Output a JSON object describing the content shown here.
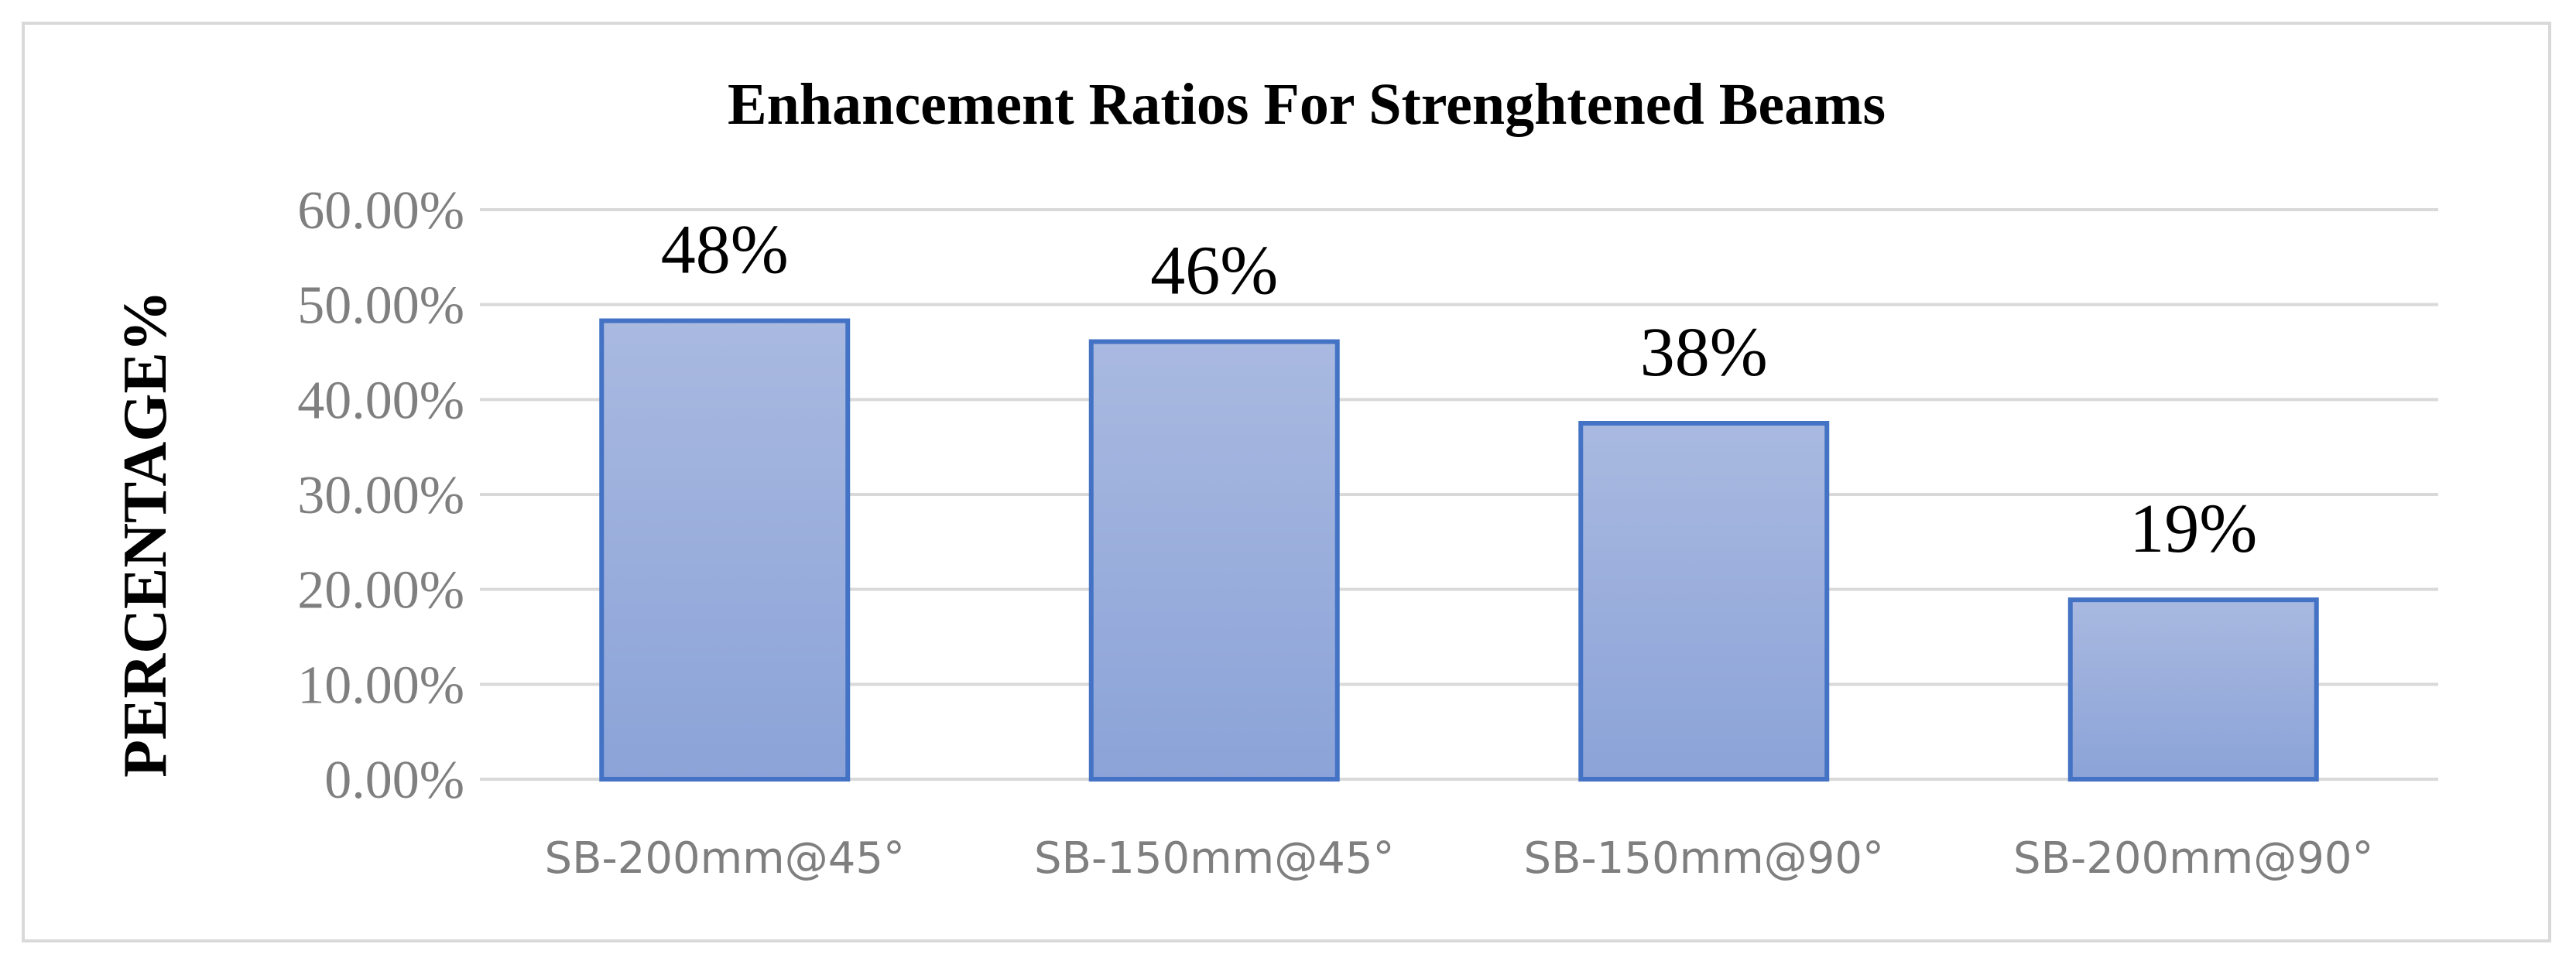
{
  "chart_data": {
    "type": "bar",
    "title": "Enhancement Ratios For Strenghtened Beams",
    "xlabel": "",
    "ylabel": "PERCENTAGE%",
    "categories": [
      "SB-200mm@45°",
      "SB-150mm@45°",
      "SB-150mm@90°",
      "SB-200mm@90°"
    ],
    "values": [
      48.3,
      46.1,
      37.5,
      18.9
    ],
    "data_labels": [
      "48%",
      "46%",
      "38%",
      "19%"
    ],
    "ylim": [
      0,
      60
    ],
    "y_ticks": [
      0,
      10,
      20,
      30,
      40,
      50,
      60
    ],
    "y_tick_labels": [
      "0.00%",
      "10.00%",
      "20.00%",
      "30.00%",
      "40.00%",
      "50.00%",
      "60.00%"
    ],
    "grid": true,
    "legend": "none",
    "colors": {
      "bar_fill_top": "#a9b9e0",
      "bar_fill_bottom": "#8ba3d8",
      "bar_border": "#4472c4",
      "gridline": "#d9d9d9",
      "tick_text": "#7f7f7f",
      "frame_border": "#d9d9d9"
    }
  }
}
